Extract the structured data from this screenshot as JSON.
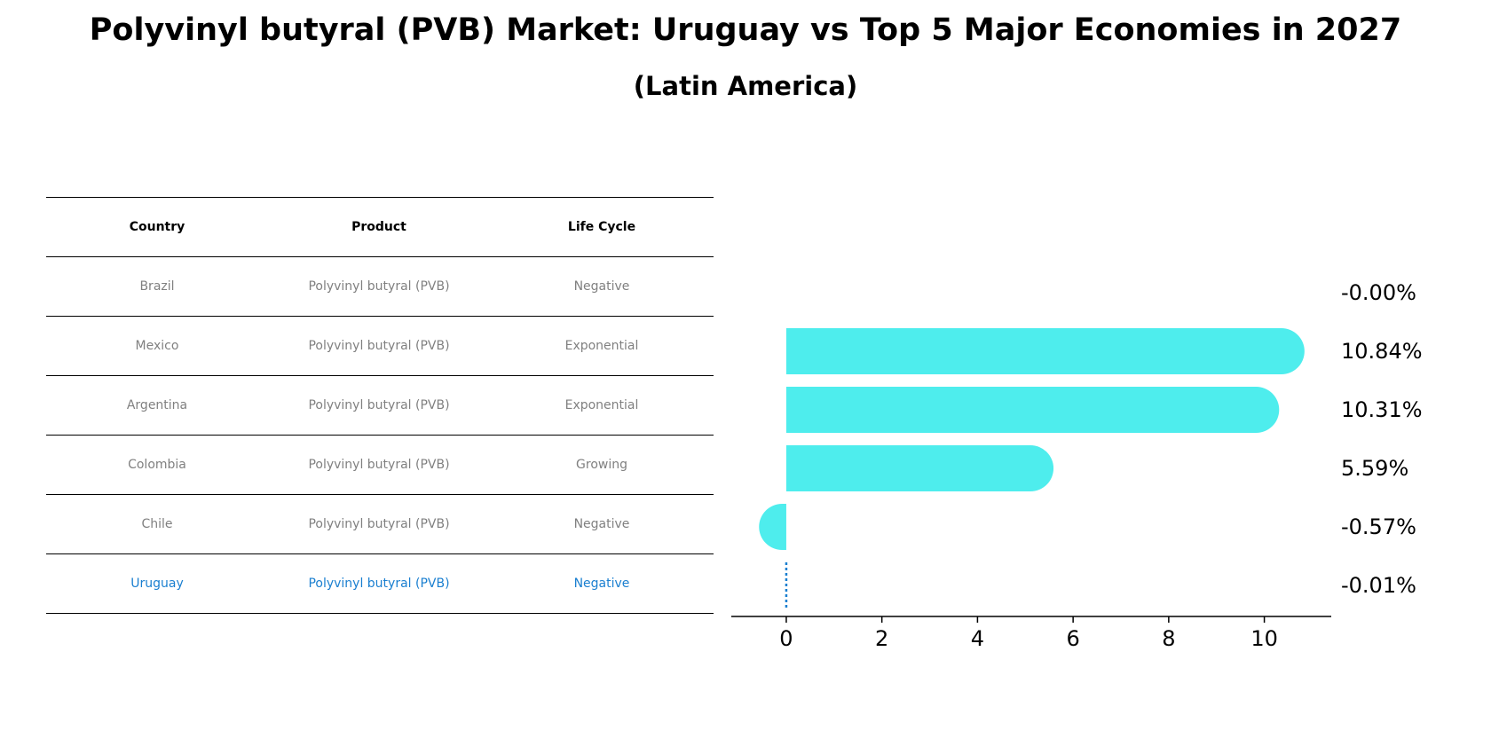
{
  "title": "Polyvinyl butyral (PVB) Market: Uruguay vs Top 5 Major Economies in 2027",
  "subtitle": "(Latin America)",
  "table": {
    "headers": [
      "Country",
      "Product",
      "Life Cycle"
    ],
    "rows": [
      {
        "country": "Brazil",
        "product": "Polyvinyl butyral (PVB)",
        "life_cycle": "Negative"
      },
      {
        "country": "Mexico",
        "product": "Polyvinyl butyral (PVB)",
        "life_cycle": "Exponential"
      },
      {
        "country": "Argentina",
        "product": "Polyvinyl butyral (PVB)",
        "life_cycle": "Exponential"
      },
      {
        "country": "Colombia",
        "product": "Polyvinyl butyral (PVB)",
        "life_cycle": "Growing"
      },
      {
        "country": "Chile",
        "product": "Polyvinyl butyral (PVB)",
        "life_cycle": "Negative"
      },
      {
        "country": "Uruguay",
        "product": "Polyvinyl butyral (PVB)",
        "life_cycle": "Negative"
      }
    ]
  },
  "chart_data": {
    "type": "bar",
    "orientation": "horizontal",
    "categories": [
      "Brazil",
      "Mexico",
      "Argentina",
      "Colombia",
      "Chile",
      "Uruguay"
    ],
    "values": [
      -0.0,
      10.84,
      10.31,
      5.59,
      -0.57,
      -0.01
    ],
    "value_labels": [
      "-0.00%",
      "10.84%",
      "10.31%",
      "5.59%",
      "-0.57%",
      "-0.01%"
    ],
    "xticks": [
      0,
      2,
      4,
      6,
      8,
      10
    ],
    "xlim": [
      -1.15,
      11.4
    ],
    "highlight": "Uruguay",
    "colors": {
      "bar": "#4EEDED",
      "highlight": "#1a7fd0"
    }
  }
}
